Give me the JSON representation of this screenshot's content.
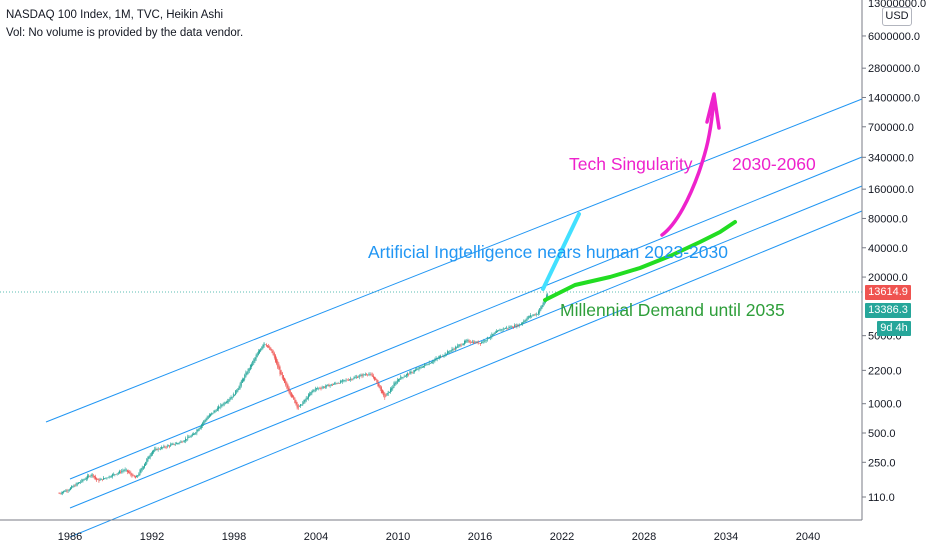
{
  "header": {
    "title": "NASDAQ 100 Index, 1M, TVC, Heikin Ashi",
    "volume_note": "Vol: No volume is provided by the data vendor."
  },
  "price_axis": {
    "currency": "USD",
    "top_partial_label": "13000000.0",
    "current_price": "13614.9",
    "second_price": "13386.3",
    "countdown": "9d 4h",
    "current_price_color": "#ef5350",
    "second_price_color": "#26a69a"
  },
  "annotations": {
    "tech_singularity": "Tech Singularity",
    "singularity_years": "2030-2060",
    "ai_text": "Artificial Ingtelligence nears human 2023-2030",
    "millennial_text": "Millennial Demand until 2035"
  },
  "colors": {
    "up_candle": "#26a69a",
    "down_candle": "#ef5350",
    "channel_lines": "#2196f3",
    "ai_line": "#42e0ff",
    "green_line": "#22dd22",
    "magenta": "#ee22cc",
    "blue_text": "#2196f3",
    "green_text": "#2e9e3a"
  },
  "chart_data": {
    "type": "candlestick",
    "title": "NASDAQ 100 Index, 1M, TVC, Heikin Ashi",
    "x_ticks": [
      "1986",
      "1992",
      "1998",
      "2004",
      "2010",
      "2016",
      "2022",
      "2028",
      "2034",
      "2040"
    ],
    "y_ticks": [
      "6000000.0",
      "2800000.0",
      "1400000.0",
      "700000.0",
      "340000.0",
      "160000.0",
      "80000.0",
      "40000.0",
      "20000.0",
      "5000.0",
      "2200.0",
      "1000.0",
      "500.0",
      "250.0",
      "110.0"
    ],
    "y_scale": "log",
    "anchor_points": [
      {
        "x": 1985.2,
        "y": 120
      },
      {
        "x": 1986.0,
        "y": 135
      },
      {
        "x": 1987.6,
        "y": 190
      },
      {
        "x": 1988.0,
        "y": 160
      },
      {
        "x": 1990.0,
        "y": 210
      },
      {
        "x": 1990.8,
        "y": 170
      },
      {
        "x": 1992.0,
        "y": 330
      },
      {
        "x": 1994.0,
        "y": 400
      },
      {
        "x": 1995.0,
        "y": 480
      },
      {
        "x": 1996.0,
        "y": 720
      },
      {
        "x": 1997.0,
        "y": 950
      },
      {
        "x": 1998.0,
        "y": 1250
      },
      {
        "x": 1999.0,
        "y": 2200
      },
      {
        "x": 2000.2,
        "y": 4300
      },
      {
        "x": 2000.8,
        "y": 3300
      },
      {
        "x": 2001.6,
        "y": 1700
      },
      {
        "x": 2002.7,
        "y": 900
      },
      {
        "x": 2003.8,
        "y": 1400
      },
      {
        "x": 2005.0,
        "y": 1550
      },
      {
        "x": 2007.8,
        "y": 2050
      },
      {
        "x": 2008.3,
        "y": 1800
      },
      {
        "x": 2009.0,
        "y": 1150
      },
      {
        "x": 2010.0,
        "y": 1800
      },
      {
        "x": 2011.5,
        "y": 2300
      },
      {
        "x": 2013.0,
        "y": 3000
      },
      {
        "x": 2015.0,
        "y": 4400
      },
      {
        "x": 2016.0,
        "y": 4200
      },
      {
        "x": 2017.5,
        "y": 5800
      },
      {
        "x": 2018.9,
        "y": 6500
      },
      {
        "x": 2019.5,
        "y": 7800
      },
      {
        "x": 2020.2,
        "y": 8500
      },
      {
        "x": 2021.0,
        "y": 13614.9
      }
    ],
    "legend": "none",
    "grid": false
  }
}
